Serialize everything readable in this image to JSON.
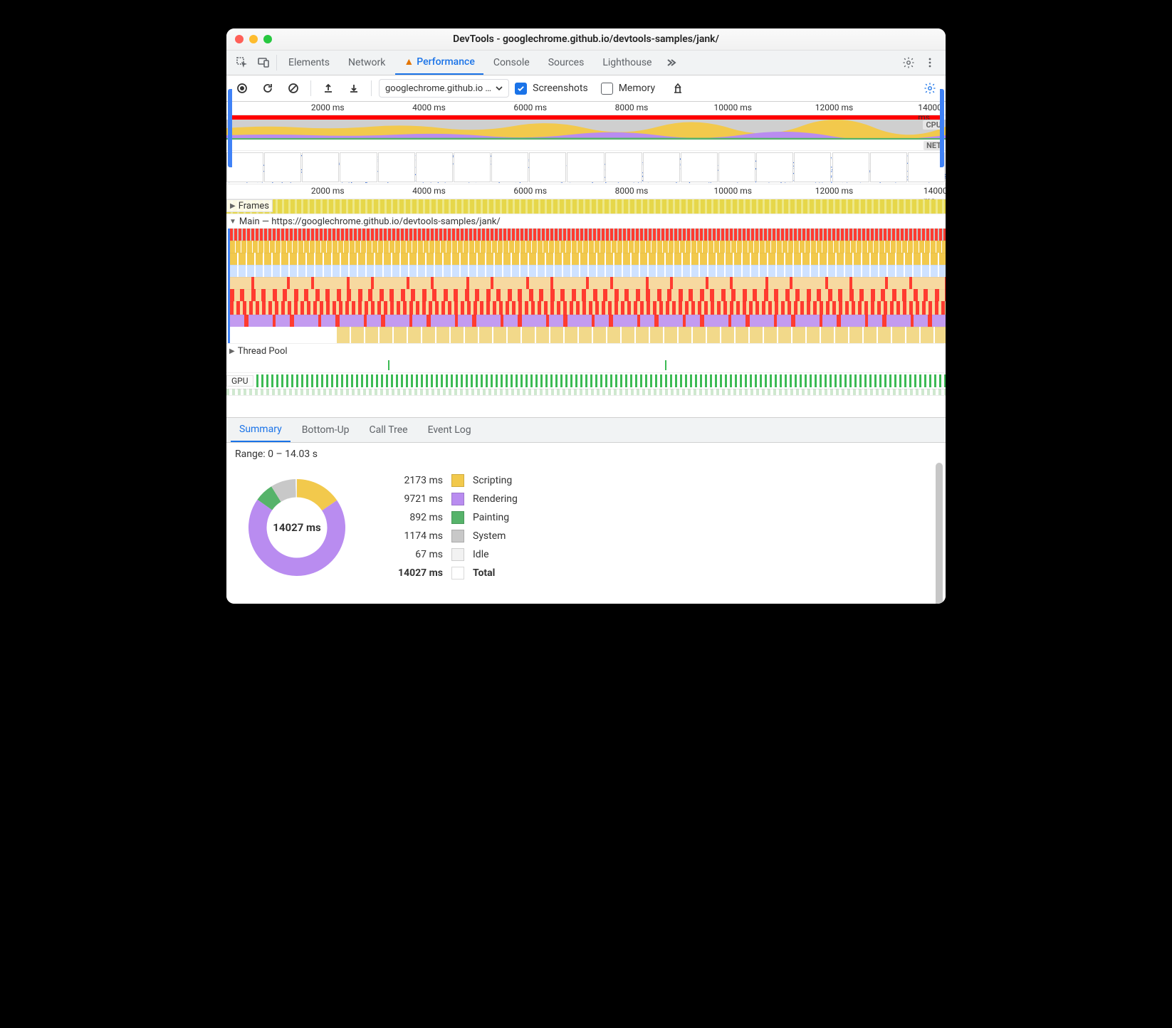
{
  "window": {
    "title": "DevTools - googlechrome.github.io/devtools-samples/jank/",
    "traffic_colors": [
      "#ff5f57",
      "#febc2e",
      "#28c840"
    ]
  },
  "tabs": {
    "items": [
      "Elements",
      "Network",
      "Performance",
      "Console",
      "Sources",
      "Lighthouse"
    ],
    "active_index": 2,
    "warn_on_index": 2
  },
  "toolbar": {
    "target": "googlechrome.github.io …",
    "screenshots_label": "Screenshots",
    "screenshots_checked": true,
    "memory_label": "Memory",
    "memory_checked": false
  },
  "overview": {
    "ruler_ticks_ms": [
      2000,
      4000,
      6000,
      8000,
      10000,
      12000,
      14000
    ],
    "ruler_max_ms": 14200,
    "cpu_label": "CPU",
    "net_label": "NET",
    "cpu_colors": {
      "scripting": "#f2c94c",
      "rendering": "#b98cf0",
      "painting": "#56b36a",
      "idle": "#cfcfcf"
    },
    "screenshot_count": 19
  },
  "timeline": {
    "ruler_ticks_ms": [
      2000,
      4000,
      6000,
      8000,
      10000,
      12000,
      14000
    ],
    "ruler_max_ms": 14200,
    "frames_label": "Frames",
    "main_label": "Main — https://googlechrome.github.io/devtools-samples/jank/",
    "threadpool_label": "Thread Pool",
    "gpu_label": "GPU",
    "threadpool_marks_pct": [
      22.5,
      61.0
    ],
    "flame_colors": {
      "task_red": "#ff3b30",
      "task_gray": "#c6c6c6",
      "scripting": "#f2c94c",
      "rendering_light": "#cfe2ff",
      "layout_red": "#ff3b30",
      "layout_tan": "#f7d9a0",
      "purple": "#c39bf0",
      "paint": "#f2d98a",
      "gpu_green": "#3cba54"
    }
  },
  "bottom": {
    "tabs": [
      "Summary",
      "Bottom-Up",
      "Call Tree",
      "Event Log"
    ],
    "active_index": 0,
    "range_label": "Range: 0 – 14.03 s",
    "donut_total": "14027 ms",
    "legend": [
      {
        "ms": 2173,
        "label": "Scripting",
        "color": "#f2c94c"
      },
      {
        "ms": 9721,
        "label": "Rendering",
        "color": "#b98cf0"
      },
      {
        "ms": 892,
        "label": "Painting",
        "color": "#56b36a"
      },
      {
        "ms": 1174,
        "label": "System",
        "color": "#c8c8c8"
      },
      {
        "ms": 67,
        "label": "Idle",
        "color": "#f2f2f2"
      }
    ],
    "total_row": {
      "ms": 14027,
      "label": "Total",
      "color": "#ffffff"
    }
  }
}
